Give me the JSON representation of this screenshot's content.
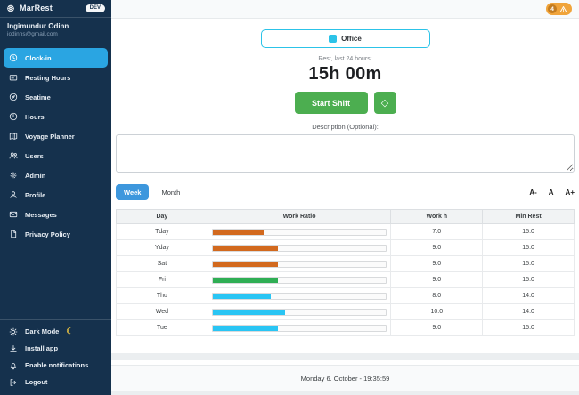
{
  "sidebar": {
    "brand": "MarRest",
    "badge": "DEV",
    "user": {
      "name": "Ingimundur Odinn",
      "email": "iodinns@gmail.com"
    },
    "nav": [
      {
        "label": "Clock-in",
        "icon": "clock-icon",
        "active": true
      },
      {
        "label": "Resting Hours",
        "icon": "rest-card-icon",
        "active": false
      },
      {
        "label": "Seatime",
        "icon": "compass-icon",
        "active": false
      },
      {
        "label": "Hours",
        "icon": "clock-hours-icon",
        "active": false
      },
      {
        "label": "Voyage Planner",
        "icon": "map-icon",
        "active": false
      },
      {
        "label": "Users",
        "icon": "users-icon",
        "active": false
      },
      {
        "label": "Admin",
        "icon": "gear-icon",
        "active": false
      },
      {
        "label": "Profile",
        "icon": "person-icon",
        "active": false
      },
      {
        "label": "Messages",
        "icon": "envelope-icon",
        "active": false
      },
      {
        "label": "Privacy Policy",
        "icon": "document-icon",
        "active": false
      }
    ],
    "footer": [
      {
        "label": "Dark Mode",
        "icon": "sun-icon"
      },
      {
        "label": "Install app",
        "icon": "download-icon"
      },
      {
        "label": "Enable notifications",
        "icon": "bell-icon"
      },
      {
        "label": "Logout",
        "icon": "logout-icon"
      }
    ],
    "moon_glyph": "☾"
  },
  "header": {
    "alert_count": "4"
  },
  "main": {
    "location_button": "Office",
    "rest_label": "Rest, last 24 hours:",
    "rest_value": "15h 00m",
    "start_shift_label": "Start Shift",
    "refresh_glyph": "◇",
    "description_label": "Description (Optional):",
    "description_value": "",
    "tabs": {
      "week": "Week",
      "month": "Month"
    },
    "font_controls": [
      "A-",
      "A",
      "A+"
    ]
  },
  "table": {
    "type": "table",
    "columns": [
      "Day",
      "Work Ratio",
      "Work h",
      "Min Rest"
    ],
    "rows": [
      {
        "day": "Tday",
        "work_h": "7.0",
        "min_rest": "15.0",
        "ratio_pct": 29.2,
        "color": "#d2691e"
      },
      {
        "day": "Yday",
        "work_h": "9.0",
        "min_rest": "15.0",
        "ratio_pct": 37.5,
        "color": "#d2691e"
      },
      {
        "day": "Sat",
        "work_h": "9.0",
        "min_rest": "15.0",
        "ratio_pct": 37.5,
        "color": "#d2691e"
      },
      {
        "day": "Fri",
        "work_h": "9.0",
        "min_rest": "15.0",
        "ratio_pct": 37.5,
        "color": "#2fae54"
      },
      {
        "day": "Thu",
        "work_h": "8.0",
        "min_rest": "14.0",
        "ratio_pct": 33.3,
        "color": "#29c5f4"
      },
      {
        "day": "Wed",
        "work_h": "10.0",
        "min_rest": "14.0",
        "ratio_pct": 41.7,
        "color": "#29c5f4"
      },
      {
        "day": "Tue",
        "work_h": "9.0",
        "min_rest": "15.0",
        "ratio_pct": 37.5,
        "color": "#29c5f4"
      }
    ]
  },
  "footer": {
    "datetime": "Monday 6. October - 19:35:59"
  },
  "colors": {
    "sidebar_bg": "#15314d",
    "active_item": "#2aa5e2",
    "tab_blue": "#3d97dd",
    "button_green": "#4cae50",
    "office_cyan": "#2cc3e8",
    "warning_orange": "#f0a43b",
    "bar_orange": "#d2691e",
    "bar_green": "#2fae54",
    "bar_cyan": "#29c5f4"
  }
}
